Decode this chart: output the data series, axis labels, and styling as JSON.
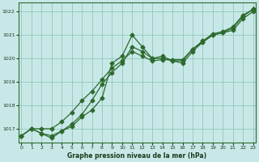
{
  "background_color": "#c8e8e8",
  "line_color": "#2d6a2d",
  "grid_color": "#90c8b8",
  "xlabel": "Graphe pression niveau de la mer (hPa)",
  "ylim": [
    1016.4,
    1022.4
  ],
  "xlim": [
    -0.3,
    23.3
  ],
  "yticks": [
    1017,
    1018,
    1019,
    1020,
    1021,
    1022
  ],
  "xticks": [
    0,
    1,
    2,
    3,
    4,
    5,
    6,
    7,
    8,
    9,
    10,
    11,
    12,
    13,
    14,
    15,
    16,
    17,
    18,
    19,
    20,
    21,
    22,
    23
  ],
  "line1_x": [
    0,
    1,
    2,
    3,
    4,
    5,
    6,
    7,
    8,
    9,
    10,
    11,
    12,
    13,
    14,
    15,
    16,
    17,
    18,
    19,
    20,
    21,
    22,
    23
  ],
  "line1_y": [
    1016.7,
    1017.0,
    1016.8,
    1016.6,
    1016.9,
    1017.1,
    1017.5,
    1017.8,
    1018.3,
    1019.8,
    1020.1,
    1021.0,
    1020.5,
    1020.0,
    1020.1,
    1019.9,
    1019.9,
    1020.4,
    1020.7,
    1021.0,
    1021.1,
    1021.3,
    1021.8,
    1022.1
  ],
  "line2_x": [
    0,
    1,
    2,
    3,
    4,
    5,
    6,
    7,
    8,
    9,
    10,
    11,
    12,
    13,
    14,
    15,
    16,
    17,
    18,
    19,
    20,
    21,
    22,
    23
  ],
  "line2_y": [
    1016.7,
    1017.0,
    1016.8,
    1016.7,
    1016.9,
    1017.2,
    1017.6,
    1018.2,
    1018.9,
    1019.4,
    1019.8,
    1020.5,
    1020.3,
    1020.0,
    1020.0,
    1019.9,
    1019.8,
    1020.3,
    1020.7,
    1021.0,
    1021.1,
    1021.2,
    1021.7,
    1022.0
  ],
  "line3_x": [
    0,
    1,
    2,
    3,
    4,
    5,
    6,
    7,
    8,
    9,
    10,
    11,
    12,
    13,
    14,
    15,
    16,
    17,
    18,
    19,
    20,
    21,
    22,
    23
  ],
  "line3_y": [
    1016.7,
    1017.0,
    1017.0,
    1017.0,
    1017.3,
    1017.7,
    1018.2,
    1018.6,
    1019.1,
    1019.6,
    1019.9,
    1020.3,
    1020.1,
    1019.9,
    1019.95,
    1019.95,
    1019.95,
    1020.4,
    1020.75,
    1021.05,
    1021.15,
    1021.35,
    1021.85,
    1022.1
  ]
}
